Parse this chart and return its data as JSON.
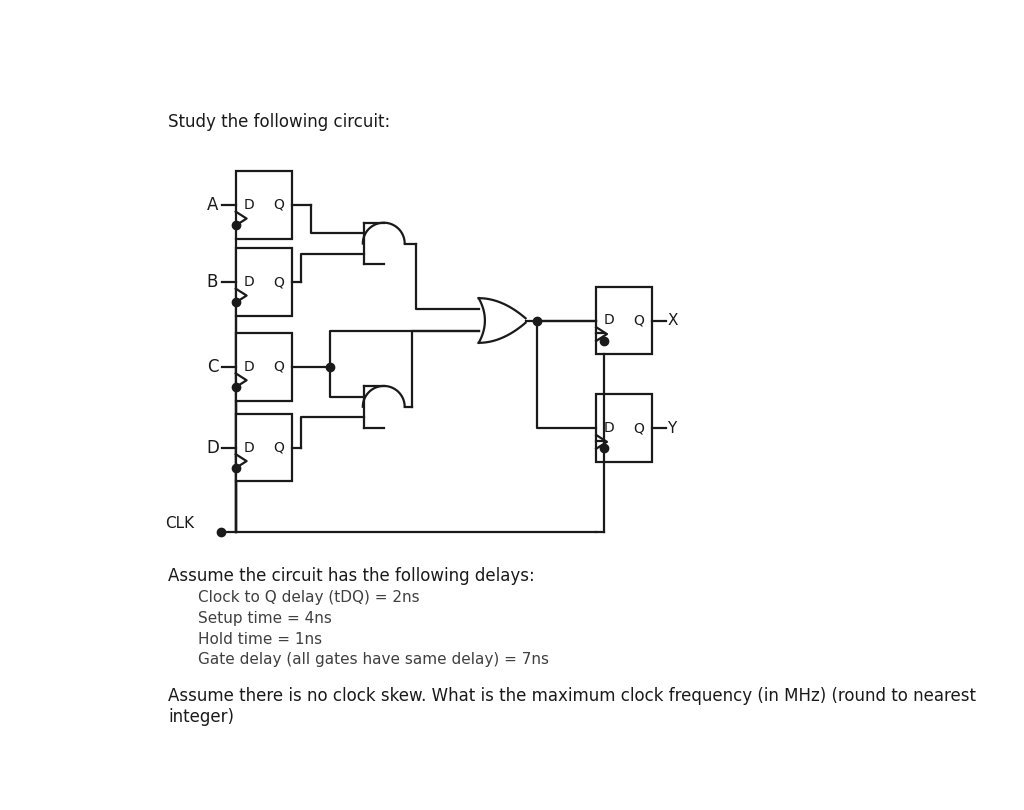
{
  "title": "Study the following circuit:",
  "bg_color": "#ffffff",
  "text_color": "#1a1a1a",
  "delay_lines": [
    "Clock to Q delay (tDQ) = 2ns",
    "Setup time = 4ns",
    "Hold time = 1ns",
    "Gate delay (all gates have same delay) = 7ns"
  ],
  "assume_text": "Assume the circuit has the following delays:",
  "question_text": "Assume there is no clock skew. What is the maximum clock frequency (in MHz) (round to nearest\ninteger)",
  "lw": 1.6
}
